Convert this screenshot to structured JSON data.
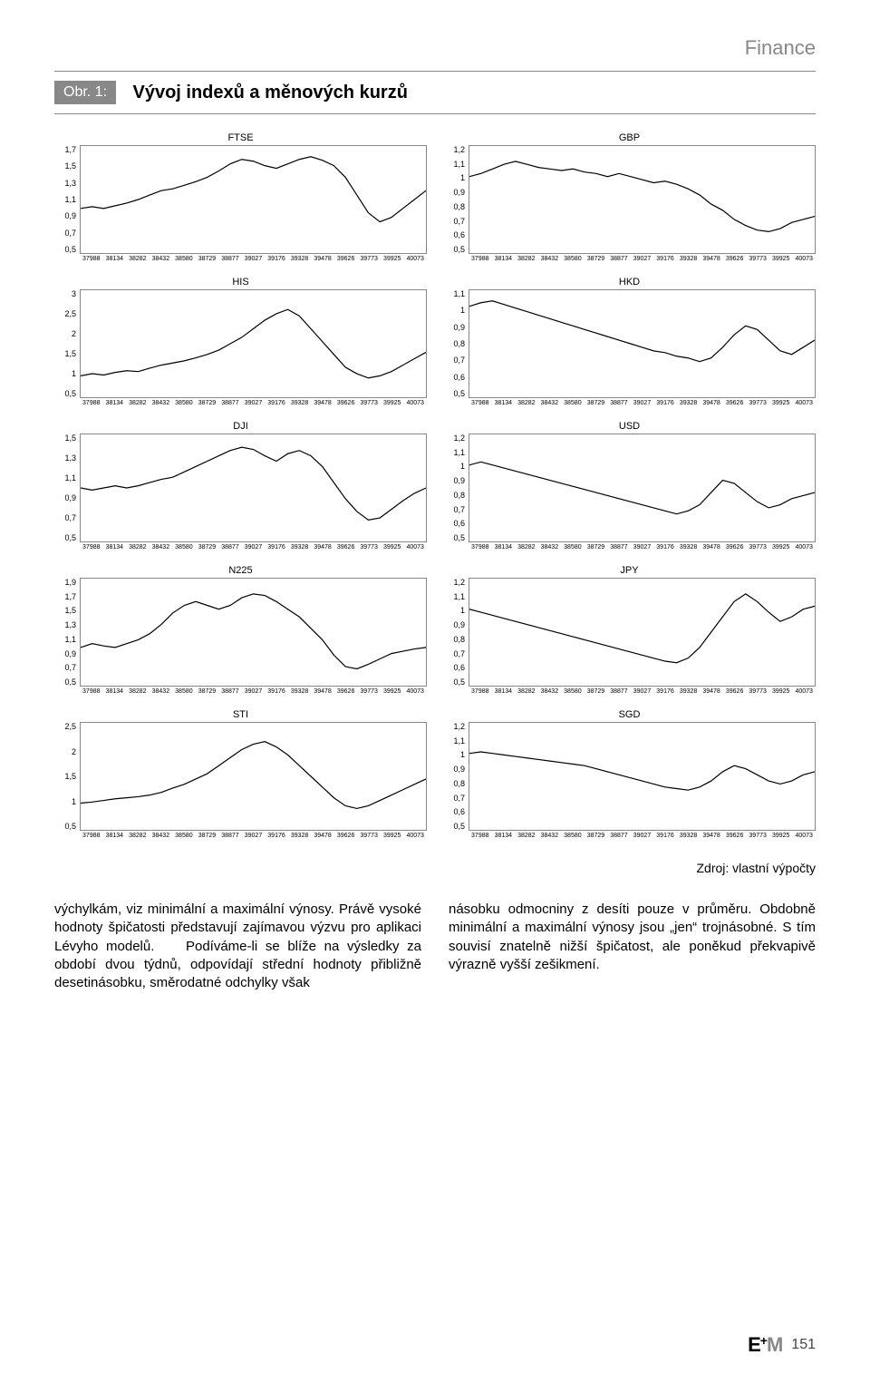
{
  "header": {
    "section": "Finance"
  },
  "figure": {
    "label": "Obr. 1:",
    "title": "Vývoj indexů a měnových kurzů",
    "source": "Zdroj: vlastní výpočty"
  },
  "x_axis_ticks": [
    "37988",
    "38134",
    "38282",
    "38432",
    "38580",
    "38729",
    "38877",
    "39027",
    "39176",
    "39328",
    "39478",
    "39626",
    "39773",
    "39925",
    "40073"
  ],
  "charts": [
    {
      "id": "ftse",
      "title": "FTSE",
      "type": "line",
      "y_ticks": [
        "1,7",
        "1,5",
        "1,3",
        "1,1",
        "0,9",
        "0,7",
        "0,5"
      ],
      "ylim": [
        0.5,
        1.7
      ],
      "line_color": "#000000",
      "background_color": "#ffffff",
      "border_color": "#888888",
      "font_size_title": 11,
      "font_size_ticks": 9,
      "line_width": 1.2,
      "data": [
        1.0,
        1.02,
        1.0,
        1.03,
        1.06,
        1.1,
        1.15,
        1.2,
        1.22,
        1.26,
        1.3,
        1.35,
        1.42,
        1.5,
        1.55,
        1.53,
        1.48,
        1.45,
        1.5,
        1.55,
        1.58,
        1.54,
        1.48,
        1.35,
        1.15,
        0.95,
        0.85,
        0.9,
        1.0,
        1.1,
        1.2
      ]
    },
    {
      "id": "gbp",
      "title": "GBP",
      "type": "line",
      "y_ticks": [
        "1,2",
        "1,1",
        "1",
        "0,9",
        "0,8",
        "0,7",
        "0,6",
        "0,5"
      ],
      "ylim": [
        0.5,
        1.2
      ],
      "line_color": "#000000",
      "background_color": "#ffffff",
      "border_color": "#888888",
      "font_size_title": 11,
      "font_size_ticks": 9,
      "line_width": 1.2,
      "data": [
        1.0,
        1.02,
        1.05,
        1.08,
        1.1,
        1.08,
        1.06,
        1.05,
        1.04,
        1.05,
        1.03,
        1.02,
        1.0,
        1.02,
        1.0,
        0.98,
        0.96,
        0.97,
        0.95,
        0.92,
        0.88,
        0.82,
        0.78,
        0.72,
        0.68,
        0.65,
        0.64,
        0.66,
        0.7,
        0.72,
        0.74
      ]
    },
    {
      "id": "his",
      "title": "HIS",
      "type": "line",
      "y_ticks": [
        "3",
        "2,5",
        "2",
        "1,5",
        "1",
        "0,5"
      ],
      "ylim": [
        0.5,
        3.0
      ],
      "line_color": "#000000",
      "background_color": "#ffffff",
      "border_color": "#888888",
      "font_size_title": 11,
      "font_size_ticks": 9,
      "line_width": 1.2,
      "data": [
        1.0,
        1.05,
        1.02,
        1.08,
        1.12,
        1.1,
        1.18,
        1.25,
        1.3,
        1.35,
        1.42,
        1.5,
        1.6,
        1.75,
        1.9,
        2.1,
        2.3,
        2.45,
        2.55,
        2.4,
        2.1,
        1.8,
        1.5,
        1.2,
        1.05,
        0.95,
        1.0,
        1.1,
        1.25,
        1.4,
        1.55
      ]
    },
    {
      "id": "hkd",
      "title": "HKD",
      "type": "line",
      "y_ticks": [
        "1,1",
        "1",
        "0,9",
        "0,8",
        "0,7",
        "0,6",
        "0,5"
      ],
      "ylim": [
        0.5,
        1.1
      ],
      "line_color": "#000000",
      "background_color": "#ffffff",
      "border_color": "#888888",
      "font_size_title": 11,
      "font_size_ticks": 9,
      "line_width": 1.2,
      "data": [
        1.01,
        1.03,
        1.04,
        1.02,
        1.0,
        0.98,
        0.96,
        0.94,
        0.92,
        0.9,
        0.88,
        0.86,
        0.84,
        0.82,
        0.8,
        0.78,
        0.76,
        0.75,
        0.73,
        0.72,
        0.7,
        0.72,
        0.78,
        0.85,
        0.9,
        0.88,
        0.82,
        0.76,
        0.74,
        0.78,
        0.82
      ]
    },
    {
      "id": "dji",
      "title": "DJI",
      "type": "line",
      "y_ticks": [
        "1,5",
        "1,3",
        "1,1",
        "0,9",
        "0,7",
        "0,5"
      ],
      "ylim": [
        0.5,
        1.5
      ],
      "line_color": "#000000",
      "background_color": "#ffffff",
      "border_color": "#888888",
      "font_size_title": 11,
      "font_size_ticks": 9,
      "line_width": 1.2,
      "data": [
        1.0,
        0.98,
        1.0,
        1.02,
        1.0,
        1.02,
        1.05,
        1.08,
        1.1,
        1.15,
        1.2,
        1.25,
        1.3,
        1.35,
        1.38,
        1.36,
        1.3,
        1.25,
        1.32,
        1.35,
        1.3,
        1.2,
        1.05,
        0.9,
        0.78,
        0.7,
        0.72,
        0.8,
        0.88,
        0.95,
        1.0
      ]
    },
    {
      "id": "usd",
      "title": "USD",
      "type": "line",
      "y_ticks": [
        "1,2",
        "1,1",
        "1",
        "0,9",
        "0,8",
        "0,7",
        "0,6",
        "0,5"
      ],
      "ylim": [
        0.5,
        1.2
      ],
      "line_color": "#000000",
      "background_color": "#ffffff",
      "border_color": "#888888",
      "font_size_title": 11,
      "font_size_ticks": 9,
      "line_width": 1.2,
      "data": [
        1.0,
        1.02,
        1.0,
        0.98,
        0.96,
        0.94,
        0.92,
        0.9,
        0.88,
        0.86,
        0.84,
        0.82,
        0.8,
        0.78,
        0.76,
        0.74,
        0.72,
        0.7,
        0.68,
        0.7,
        0.74,
        0.82,
        0.9,
        0.88,
        0.82,
        0.76,
        0.72,
        0.74,
        0.78,
        0.8,
        0.82
      ]
    },
    {
      "id": "n225",
      "title": "N225",
      "type": "line",
      "y_ticks": [
        "1,9",
        "1,7",
        "1,5",
        "1,3",
        "1,1",
        "0,9",
        "0,7",
        "0,5"
      ],
      "ylim": [
        0.5,
        1.9
      ],
      "line_color": "#000000",
      "background_color": "#ffffff",
      "border_color": "#888888",
      "font_size_title": 11,
      "font_size_ticks": 9,
      "line_width": 1.2,
      "data": [
        1.0,
        1.05,
        1.02,
        1.0,
        1.05,
        1.1,
        1.18,
        1.3,
        1.45,
        1.55,
        1.6,
        1.55,
        1.5,
        1.55,
        1.65,
        1.7,
        1.68,
        1.6,
        1.5,
        1.4,
        1.25,
        1.1,
        0.9,
        0.75,
        0.72,
        0.78,
        0.85,
        0.92,
        0.95,
        0.98,
        1.0
      ]
    },
    {
      "id": "jpy",
      "title": "JPY",
      "type": "line",
      "y_ticks": [
        "1,2",
        "1,1",
        "1",
        "0,9",
        "0,8",
        "0,7",
        "0,6",
        "0,5"
      ],
      "ylim": [
        0.5,
        1.2
      ],
      "line_color": "#000000",
      "background_color": "#ffffff",
      "border_color": "#888888",
      "font_size_title": 11,
      "font_size_ticks": 9,
      "line_width": 1.2,
      "data": [
        1.0,
        0.98,
        0.96,
        0.94,
        0.92,
        0.9,
        0.88,
        0.86,
        0.84,
        0.82,
        0.8,
        0.78,
        0.76,
        0.74,
        0.72,
        0.7,
        0.68,
        0.66,
        0.65,
        0.68,
        0.75,
        0.85,
        0.95,
        1.05,
        1.1,
        1.05,
        0.98,
        0.92,
        0.95,
        1.0,
        1.02
      ]
    },
    {
      "id": "sti",
      "title": "STI",
      "type": "line",
      "y_ticks": [
        "2,5",
        "2",
        "1,5",
        "1",
        "0,5"
      ],
      "ylim": [
        0.5,
        2.5
      ],
      "line_color": "#000000",
      "background_color": "#ffffff",
      "border_color": "#888888",
      "font_size_title": 11,
      "font_size_ticks": 9,
      "line_width": 1.2,
      "data": [
        1.0,
        1.02,
        1.05,
        1.08,
        1.1,
        1.12,
        1.15,
        1.2,
        1.28,
        1.35,
        1.45,
        1.55,
        1.7,
        1.85,
        2.0,
        2.1,
        2.15,
        2.05,
        1.9,
        1.7,
        1.5,
        1.3,
        1.1,
        0.95,
        0.9,
        0.95,
        1.05,
        1.15,
        1.25,
        1.35,
        1.45
      ]
    },
    {
      "id": "sgd",
      "title": "SGD",
      "type": "line",
      "y_ticks": [
        "1,2",
        "1,1",
        "1",
        "0,9",
        "0,8",
        "0,7",
        "0,6",
        "0,5"
      ],
      "ylim": [
        0.5,
        1.2
      ],
      "line_color": "#000000",
      "background_color": "#ffffff",
      "border_color": "#888888",
      "font_size_title": 11,
      "font_size_ticks": 9,
      "line_width": 1.2,
      "data": [
        1.0,
        1.01,
        1.0,
        0.99,
        0.98,
        0.97,
        0.96,
        0.95,
        0.94,
        0.93,
        0.92,
        0.9,
        0.88,
        0.86,
        0.84,
        0.82,
        0.8,
        0.78,
        0.77,
        0.76,
        0.78,
        0.82,
        0.88,
        0.92,
        0.9,
        0.86,
        0.82,
        0.8,
        0.82,
        0.86,
        0.88
      ]
    }
  ],
  "body": {
    "col1": "výchylkám, viz minimální a maximální výnosy. Právě vysoké hodnoty špičatosti představují zajímavou výzvu pro aplikaci Lévyho modelů.\n   Podíváme-li se blíže na výsledky za období dvou týdnů, odpovídají střední hodnoty přibližně desetinásobku, směrodatné odchylky však",
    "col2": "násobku odmocniny z desíti pouze v průměru. Obdobně minimální a maximální výnosy jsou „jen“ trojnásobné. S tím souvisí znatelně nižší špičatost, ale poněkud překvapivě výrazně vyšší zešikmení."
  },
  "footer": {
    "logo_e": "E",
    "logo_plus": "+",
    "logo_m": "M",
    "page": "151"
  }
}
